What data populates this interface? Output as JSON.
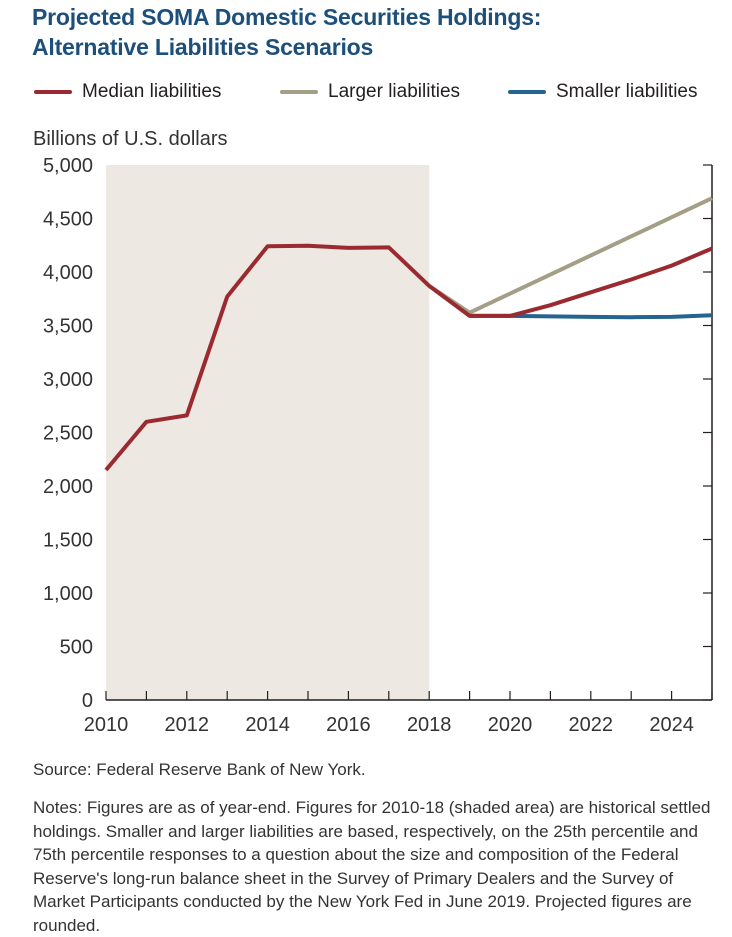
{
  "title_lines": [
    "Projected SOMA Domestic Securities Holdings:",
    "Alternative Liabilities Scenarios"
  ],
  "legend": [
    {
      "label": "Median liabilities",
      "color": "#9b2a30"
    },
    {
      "label": "Larger liabilities",
      "color": "#a39e85"
    },
    {
      "label": "Smaller liabilities",
      "color": "#24648f"
    }
  ],
  "source": "Source: Federal Reserve Bank of New York.",
  "notes": "Notes: Figures are as of year-end. Figures for 2010-18 (shaded area) are historical settled holdings. Smaller and larger liabilities are based, respectively, on the 25th percentile and 75th percentile responses to a question about the size and composition of the Federal Reserve's long-run balance sheet in the Survey of Primary Dealers and the Survey of Market Participants conducted by the New York Fed in June 2019. Projected figures are rounded.",
  "chart_data": {
    "type": "line",
    "title": "Projected SOMA Domestic Securities Holdings: Alternative Liabilities Scenarios",
    "ylabel": "Billions of U.S. dollars",
    "xlabel": "",
    "xlim": [
      2010,
      2025
    ],
    "ylim": [
      0,
      5000
    ],
    "x_ticks": [
      2010,
      2012,
      2014,
      2016,
      2018,
      2020,
      2022,
      2024
    ],
    "y_ticks": [
      0,
      500,
      1000,
      1500,
      2000,
      2500,
      3000,
      3500,
      4000,
      4500,
      5000
    ],
    "y_tick_labels": [
      "0",
      "500",
      "1,000",
      "1,500",
      "2,000",
      "2,500",
      "3,000",
      "3,500",
      "4,000",
      "4,500",
      "5,000"
    ],
    "shaded_region": {
      "from": 2010,
      "to": 2018,
      "color": "#ede8e2"
    },
    "grid": "y-axis ticks on right",
    "legend_position": "top",
    "series": [
      {
        "name": "Larger liabilities",
        "color": "#a39e85",
        "points": [
          [
            2018,
            3870
          ],
          [
            2019,
            3620
          ],
          [
            2025,
            4690
          ]
        ]
      },
      {
        "name": "Smaller liabilities",
        "color": "#24648f",
        "points": [
          [
            2019,
            3590
          ],
          [
            2020,
            3590
          ],
          [
            2021,
            3585
          ],
          [
            2022,
            3580
          ],
          [
            2023,
            3578
          ],
          [
            2024,
            3580
          ],
          [
            2025,
            3595
          ]
        ]
      },
      {
        "name": "Median liabilities",
        "color": "#9b2a30",
        "points": [
          [
            2010,
            2150
          ],
          [
            2011,
            2600
          ],
          [
            2012,
            2660
          ],
          [
            2013,
            3770
          ],
          [
            2014,
            4240
          ],
          [
            2015,
            4245
          ],
          [
            2016,
            4225
          ],
          [
            2017,
            4230
          ],
          [
            2018,
            3870
          ],
          [
            2019,
            3590
          ],
          [
            2020,
            3590
          ],
          [
            2021,
            3690
          ],
          [
            2022,
            3810
          ],
          [
            2023,
            3930
          ],
          [
            2024,
            4060
          ],
          [
            2025,
            4220
          ]
        ]
      }
    ]
  }
}
